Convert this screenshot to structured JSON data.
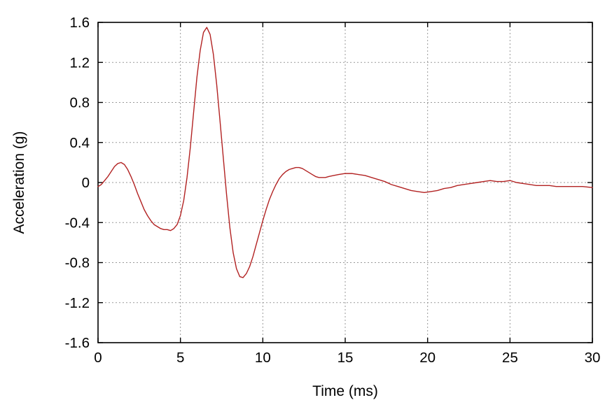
{
  "chart_data": {
    "type": "line",
    "title": "",
    "xlabel": "Time (ms)",
    "ylabel": "Acceleration (g)",
    "xlim": [
      0,
      30
    ],
    "ylim": [
      -1.6,
      1.6
    ],
    "xticks": [
      0,
      5,
      10,
      15,
      20,
      25,
      30
    ],
    "xtick_labels": [
      "0",
      "5",
      "10",
      "15",
      "20",
      "25",
      "30"
    ],
    "yticks": [
      1.6,
      1.2,
      0.8,
      0.4,
      0,
      -0.4,
      -0.8,
      -1.2,
      -1.6
    ],
    "ytick_labels": [
      "1.6",
      "1.2",
      "0.8",
      "0.4",
      "0",
      "-0.4",
      "-0.8",
      "-1.2",
      "-1.6"
    ],
    "grid": true,
    "legend": "none",
    "line_color": "#b22222",
    "grid_color": "#999999",
    "frame_color": "#000000",
    "series": [
      {
        "name": "acceleration",
        "x": [
          0.0,
          0.2,
          0.4,
          0.6,
          0.8,
          1.0,
          1.2,
          1.4,
          1.6,
          1.8,
          2.0,
          2.2,
          2.4,
          2.6,
          2.8,
          3.0,
          3.2,
          3.4,
          3.6,
          3.8,
          4.0,
          4.2,
          4.4,
          4.6,
          4.8,
          5.0,
          5.2,
          5.4,
          5.6,
          5.8,
          6.0,
          6.2,
          6.4,
          6.6,
          6.8,
          7.0,
          7.2,
          7.4,
          7.6,
          7.8,
          8.0,
          8.2,
          8.4,
          8.6,
          8.8,
          9.0,
          9.2,
          9.4,
          9.6,
          9.8,
          10.0,
          10.2,
          10.4,
          10.6,
          10.8,
          11.0,
          11.2,
          11.4,
          11.6,
          11.8,
          12.0,
          12.2,
          12.4,
          12.6,
          12.8,
          13.0,
          13.2,
          13.4,
          13.6,
          13.8,
          14.0,
          14.3,
          14.6,
          15.0,
          15.4,
          15.8,
          16.2,
          16.6,
          17.0,
          17.4,
          17.8,
          18.2,
          18.6,
          19.0,
          19.4,
          19.8,
          20.2,
          20.6,
          21.0,
          21.4,
          21.8,
          22.2,
          22.6,
          23.0,
          23.4,
          23.8,
          24.2,
          24.6,
          25.0,
          25.4,
          25.8,
          26.2,
          26.6,
          27.0,
          27.4,
          27.8,
          28.2,
          28.6,
          29.0,
          29.4,
          30.0
        ],
        "y": [
          -0.04,
          -0.02,
          0.02,
          0.06,
          0.11,
          0.16,
          0.19,
          0.2,
          0.18,
          0.13,
          0.06,
          -0.02,
          -0.11,
          -0.19,
          -0.27,
          -0.33,
          -0.38,
          -0.42,
          -0.44,
          -0.46,
          -0.47,
          -0.47,
          -0.48,
          -0.46,
          -0.42,
          -0.33,
          -0.18,
          0.05,
          0.35,
          0.7,
          1.05,
          1.32,
          1.5,
          1.55,
          1.48,
          1.28,
          0.98,
          0.62,
          0.25,
          -0.12,
          -0.45,
          -0.7,
          -0.86,
          -0.94,
          -0.95,
          -0.91,
          -0.84,
          -0.74,
          -0.62,
          -0.5,
          -0.38,
          -0.27,
          -0.17,
          -0.09,
          -0.02,
          0.04,
          0.08,
          0.11,
          0.13,
          0.14,
          0.15,
          0.15,
          0.14,
          0.12,
          0.1,
          0.08,
          0.06,
          0.05,
          0.05,
          0.05,
          0.06,
          0.07,
          0.08,
          0.09,
          0.09,
          0.08,
          0.07,
          0.05,
          0.03,
          0.01,
          -0.02,
          -0.04,
          -0.06,
          -0.08,
          -0.09,
          -0.1,
          -0.09,
          -0.08,
          -0.06,
          -0.05,
          -0.03,
          -0.02,
          -0.01,
          0.0,
          0.01,
          0.02,
          0.01,
          0.01,
          0.02,
          0.0,
          -0.01,
          -0.02,
          -0.03,
          -0.03,
          -0.03,
          -0.04,
          -0.04,
          -0.04,
          -0.04,
          -0.04,
          -0.05
        ]
      }
    ]
  }
}
